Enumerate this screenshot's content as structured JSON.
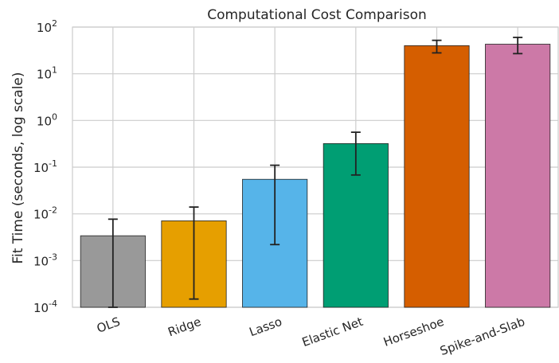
{
  "chart_data": {
    "type": "bar",
    "title": "Computational Cost Comparison",
    "xlabel": "",
    "ylabel": "Fit Time (seconds, log scale)",
    "yscale": "log",
    "ylim": [
      0.0001,
      100
    ],
    "yticks": [
      {
        "value": 0.0001,
        "base": "10",
        "exp": "-4"
      },
      {
        "value": 0.001,
        "base": "10",
        "exp": "-3"
      },
      {
        "value": 0.01,
        "base": "10",
        "exp": "-2"
      },
      {
        "value": 0.1,
        "base": "10",
        "exp": "-1"
      },
      {
        "value": 1,
        "base": "10",
        "exp": "0"
      },
      {
        "value": 10,
        "base": "10",
        "exp": "1"
      },
      {
        "value": 100,
        "base": "10",
        "exp": "2"
      }
    ],
    "grid": true,
    "categories": [
      "OLS",
      "Ridge",
      "Lasso",
      "Elastic Net",
      "Horseshoe",
      "Spike-and-Slab"
    ],
    "values": [
      0.0034,
      0.0071,
      0.055,
      0.32,
      40,
      43
    ],
    "error_low": [
      0.0001,
      0.00015,
      0.0022,
      0.068,
      28,
      27
    ],
    "error_high": [
      0.0077,
      0.014,
      0.11,
      0.56,
      52,
      60
    ],
    "colors": [
      "#999999",
      "#E69F00",
      "#56B4E9",
      "#009E73",
      "#D55E00",
      "#CC79A7"
    ]
  }
}
